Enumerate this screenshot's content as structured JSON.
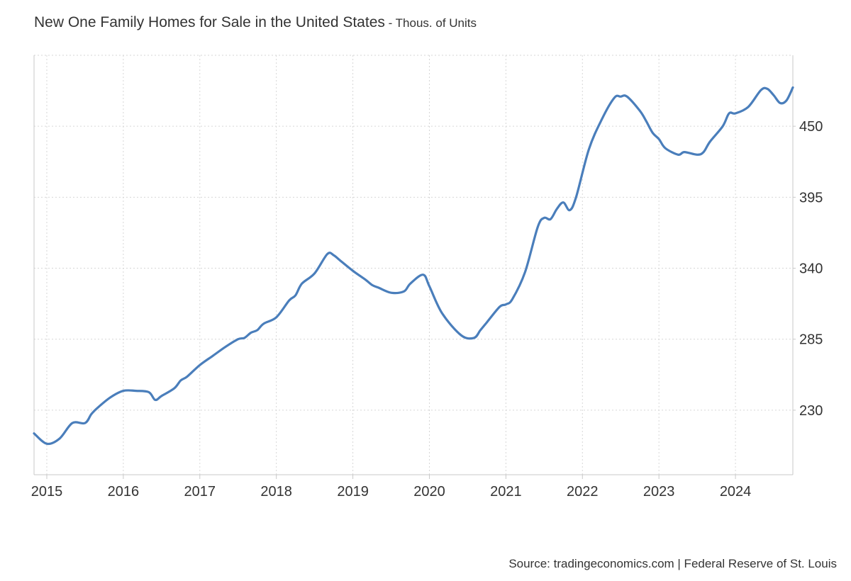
{
  "header": {
    "title": "New One Family Homes for Sale in the United States",
    "unit_suffix": " - Thous. of Units"
  },
  "footer": {
    "source": "Source: tradingeconomics.com | Federal Reserve of St. Louis"
  },
  "colors": {
    "line": "#4a7ebb",
    "grid": "#d6d6d6",
    "axis": "#c8c8c8",
    "text": "#333333"
  },
  "chart_data": {
    "type": "line",
    "title": "New One Family Homes for Sale in the United States",
    "subtitle": "Thous. of Units",
    "x_ticks": [
      "2015",
      "2016",
      "2017",
      "2018",
      "2019",
      "2020",
      "2021",
      "2022",
      "2023",
      "2024"
    ],
    "y_ticks": [
      230,
      285,
      340,
      395,
      450
    ],
    "xlim": [
      "2014-11",
      "2024-10"
    ],
    "ylim": [
      180,
      505
    ],
    "y_axis_side": "right",
    "grid": true,
    "legend": "none",
    "series": [
      {
        "x": [
          "2014-11",
          "2015-01",
          "2015-03",
          "2015-05",
          "2015-07",
          "2015-08",
          "2015-09",
          "2015-11",
          "2016-01",
          "2016-03",
          "2016-05",
          "2016-06",
          "2016-07",
          "2016-09",
          "2016-10",
          "2016-11",
          "2017-01",
          "2017-03",
          "2017-05",
          "2017-07",
          "2017-08",
          "2017-09",
          "2017-10",
          "2017-11",
          "2018-01",
          "2018-03",
          "2018-04",
          "2018-05",
          "2018-07",
          "2018-09",
          "2018-10",
          "2018-11",
          "2019-01",
          "2019-03",
          "2019-04",
          "2019-05",
          "2019-07",
          "2019-09",
          "2019-10",
          "2019-12",
          "2020-01",
          "2020-03",
          "2020-06",
          "2020-08",
          "2020-09",
          "2020-10",
          "2020-12",
          "2021-01",
          "2021-02",
          "2021-04",
          "2021-06",
          "2021-07",
          "2021-08",
          "2021-09",
          "2021-10",
          "2021-11",
          "2021-12",
          "2022-02",
          "2022-04",
          "2022-06",
          "2022-07",
          "2022-08",
          "2022-10",
          "2022-11",
          "2022-12",
          "2023-01",
          "2023-02",
          "2023-04",
          "2023-05",
          "2023-07",
          "2023-08",
          "2023-09",
          "2023-11",
          "2023-12",
          "2024-01",
          "2024-03",
          "2024-05",
          "2024-06",
          "2024-07",
          "2024-08",
          "2024-09",
          "2024-10"
        ],
        "y": [
          212,
          204,
          208,
          220,
          220,
          227,
          232,
          240,
          245,
          245,
          244,
          238,
          241,
          247,
          253,
          256,
          265,
          272,
          279,
          285,
          286,
          290,
          292,
          297,
          302,
          315,
          319,
          328,
          336,
          351,
          350,
          346,
          338,
          331,
          327,
          325,
          321,
          322,
          328,
          335,
          326,
          305,
          288,
          286,
          292,
          298,
          310,
          312,
          316,
          337,
          372,
          379,
          378,
          386,
          391,
          385,
          395,
          432,
          455,
          472,
          473,
          473,
          462,
          454,
          445,
          440,
          433,
          428,
          430,
          428,
          430,
          438,
          450,
          460,
          460,
          465,
          478,
          479,
          474,
          468,
          470,
          480
        ]
      }
    ]
  }
}
